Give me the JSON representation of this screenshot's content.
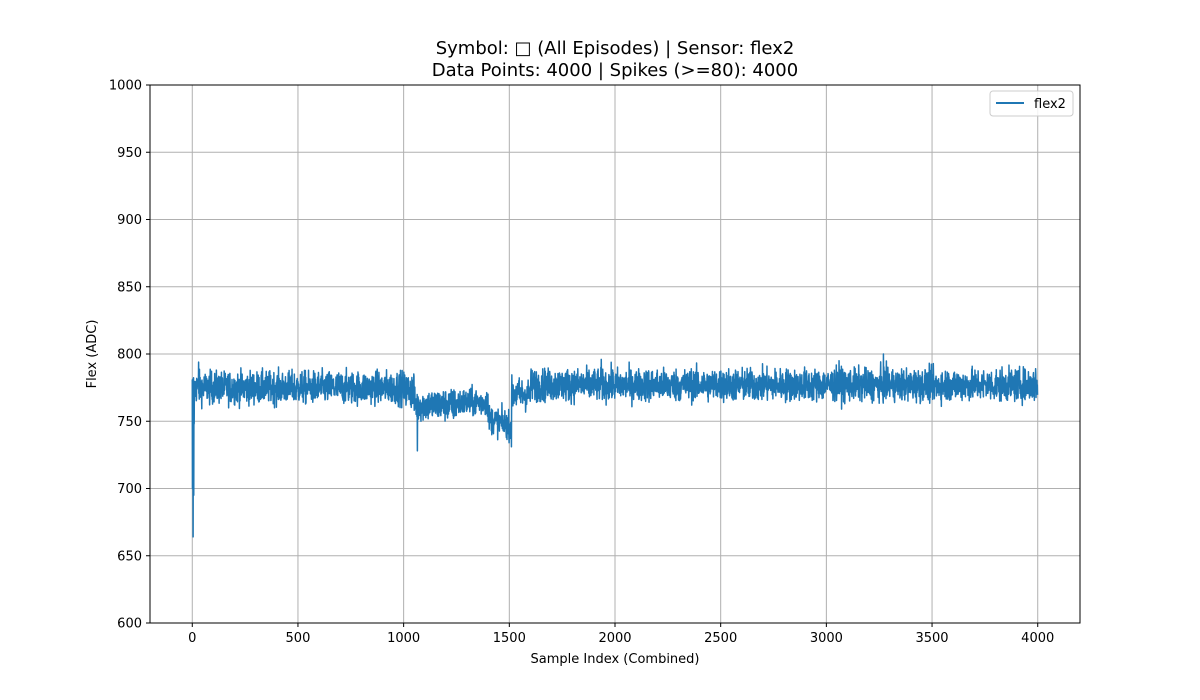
{
  "chart_data": {
    "type": "line",
    "title_line1": "Symbol: □ (All Episodes) | Sensor: flex2",
    "title_line2": "Data Points: 4000 | Spikes (>=80): 4000",
    "xlabel": "Sample Index (Combined)",
    "ylabel": "Flex (ADC)",
    "xlim": [
      -200,
      4200
    ],
    "ylim": [
      600,
      1000
    ],
    "x_ticks": [
      0,
      500,
      1000,
      1500,
      2000,
      2500,
      3000,
      3500,
      4000
    ],
    "y_ticks": [
      600,
      650,
      700,
      750,
      800,
      850,
      900,
      950,
      1000
    ],
    "grid": true,
    "legend_position": "top-right",
    "series": [
      {
        "name": "flex2",
        "color": "#1f77b4",
        "num_points": 4000,
        "segments": [
          {
            "x_start": 0,
            "x_end": 1000,
            "mean": 775,
            "spread": 7
          },
          {
            "x_start": 1000,
            "x_end": 1050,
            "mean": 773,
            "spread": 8
          },
          {
            "x_start": 1050,
            "x_end": 1250,
            "mean": 762,
            "spread": 7
          },
          {
            "x_start": 1250,
            "x_end": 1400,
            "mean": 764,
            "spread": 6
          },
          {
            "x_start": 1400,
            "x_end": 1510,
            "mean": 752,
            "spread": 6
          },
          {
            "x_start": 1510,
            "x_end": 1600,
            "mean": 770,
            "spread": 7
          },
          {
            "x_start": 1600,
            "x_end": 4000,
            "mean": 777,
            "spread": 7
          }
        ],
        "extremes": [
          {
            "x": 1,
            "y": 700
          },
          {
            "x": 4,
            "y": 664
          },
          {
            "x": 7,
            "y": 695
          },
          {
            "x": 9,
            "y": 748
          },
          {
            "x": 30,
            "y": 794
          },
          {
            "x": 1065,
            "y": 728
          },
          {
            "x": 1510,
            "y": 731
          },
          {
            "x": 1935,
            "y": 796
          },
          {
            "x": 3270,
            "y": 800
          },
          {
            "x": 3060,
            "y": 795
          },
          {
            "x": 3990,
            "y": 789
          }
        ]
      }
    ]
  }
}
